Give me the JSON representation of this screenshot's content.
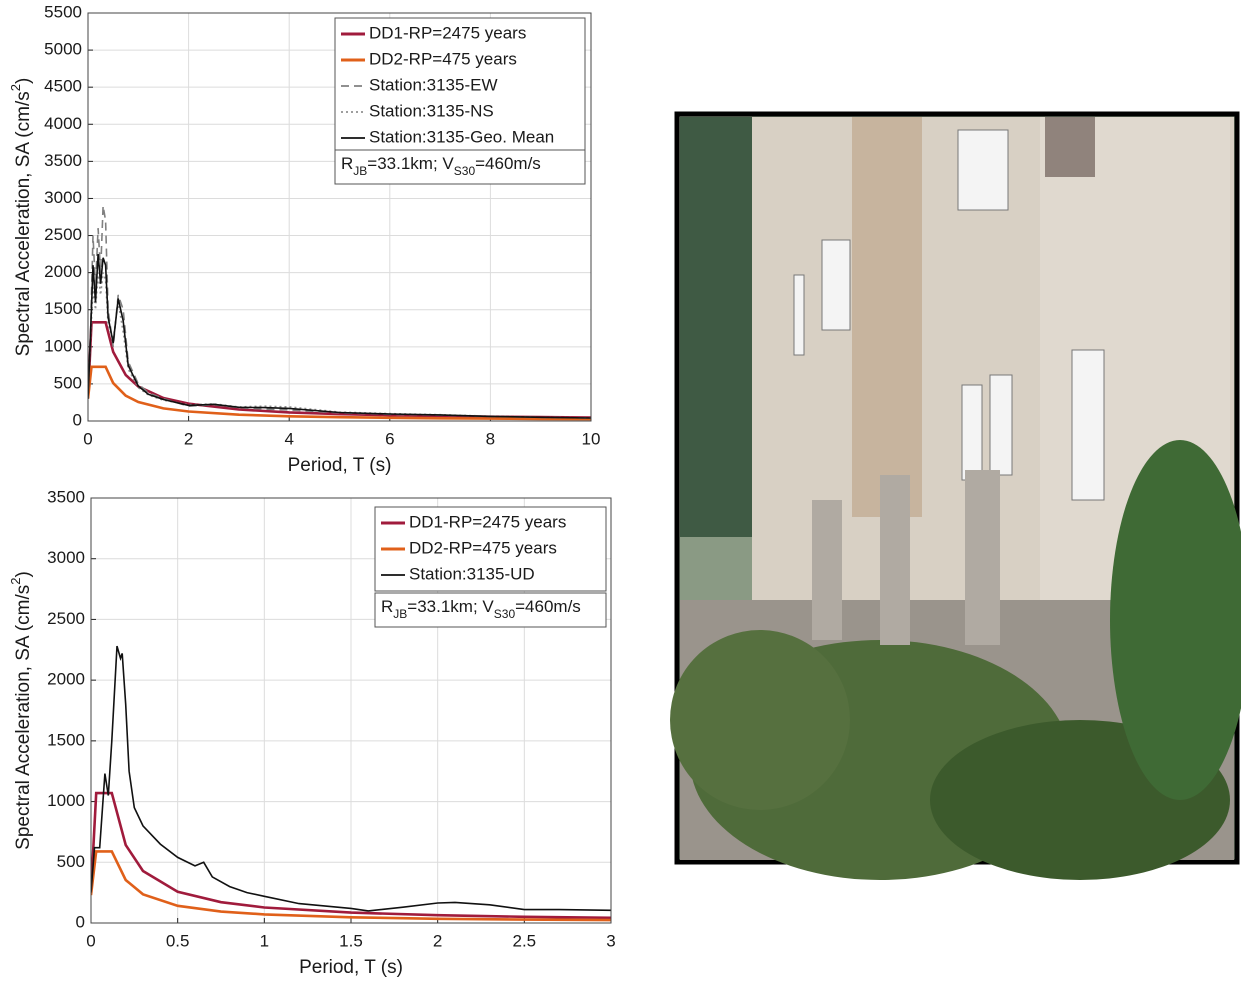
{
  "chart_data": [
    {
      "type": "line",
      "ylabel": [
        "Spectral Acceleration, SA (cm/s",
        "2",
        ")"
      ],
      "xlabel": "Period, T (s)",
      "xlim": [
        0,
        10
      ],
      "xticks": [
        0,
        2,
        4,
        6,
        8,
        10
      ],
      "ylim": [
        0,
        5500
      ],
      "yticks": [
        0,
        500,
        1000,
        1500,
        2000,
        2500,
        3000,
        3500,
        4000,
        4500,
        5000,
        5500
      ],
      "grid": true,
      "legend": "upper right",
      "annotation": [
        "R",
        "JB",
        "=33.1km; V",
        "S30",
        "=460m/s"
      ],
      "series": [
        {
          "name": "DD1-RP=2475 years",
          "color": "#a01b3c",
          "dash": "solid",
          "x": [
            0,
            0.07,
            0.1,
            0.2,
            0.3,
            0.35,
            0.5,
            0.75,
            1,
            1.5,
            2,
            3,
            4,
            5,
            6,
            7,
            8,
            9,
            10
          ],
          "values": [
            310,
            1330,
            1330,
            1330,
            1330,
            1330,
            931,
            620,
            465,
            310,
            233,
            155,
            116,
            93,
            78,
            66,
            58,
            52,
            47
          ]
        },
        {
          "name": "DD2-RP=475 years",
          "color": "#e0601a",
          "dash": "solid",
          "x": [
            0,
            0.07,
            0.1,
            0.2,
            0.3,
            0.35,
            0.5,
            0.75,
            1,
            1.5,
            2,
            3,
            4,
            5,
            6,
            7,
            8,
            9,
            10
          ],
          "values": [
            300,
            730,
            730,
            730,
            730,
            730,
            511,
            341,
            256,
            170,
            128,
            85,
            64,
            51,
            43,
            37,
            32,
            28,
            26
          ]
        },
        {
          "name": "Station:3135-EW",
          "color": "#808080",
          "dash": "dashed",
          "x": [
            0,
            0.05,
            0.1,
            0.15,
            0.2,
            0.25,
            0.3,
            0.35,
            0.4,
            0.5,
            0.6,
            0.7,
            0.8,
            1,
            1.2,
            1.5,
            2,
            2.5,
            3,
            3.5,
            4,
            5,
            6,
            7,
            8,
            9,
            10
          ],
          "values": [
            300,
            1200,
            2500,
            1800,
            2600,
            2000,
            2900,
            2700,
            1500,
            1000,
            1700,
            1500,
            800,
            500,
            380,
            300,
            200,
            220,
            180,
            160,
            150,
            110,
            90,
            80,
            60,
            50,
            40
          ]
        },
        {
          "name": "Station:3135-NS",
          "color": "#909090",
          "dash": "dotted",
          "x": [
            0,
            0.05,
            0.1,
            0.15,
            0.2,
            0.25,
            0.3,
            0.35,
            0.4,
            0.5,
            0.6,
            0.7,
            0.8,
            1,
            1.2,
            1.5,
            2,
            2.5,
            3,
            3.5,
            4,
            5,
            6,
            7,
            8,
            9,
            10
          ],
          "values": [
            300,
            1100,
            1800,
            1500,
            2000,
            1700,
            2000,
            1900,
            1300,
            1100,
            1600,
            1200,
            700,
            450,
            350,
            280,
            220,
            230,
            190,
            200,
            190,
            120,
            100,
            85,
            65,
            50,
            40
          ]
        },
        {
          "name": "Station:3135-Geo. Mean",
          "color": "#111111",
          "dash": "solid",
          "x": [
            0,
            0.05,
            0.1,
            0.15,
            0.2,
            0.25,
            0.3,
            0.35,
            0.4,
            0.5,
            0.6,
            0.7,
            0.8,
            1,
            1.2,
            1.5,
            2,
            2.5,
            3,
            3.5,
            4,
            5,
            6,
            7,
            8,
            9,
            10
          ],
          "values": [
            300,
            1150,
            2100,
            1600,
            2250,
            1850,
            2200,
            2100,
            1400,
            1050,
            1650,
            1350,
            750,
            470,
            360,
            290,
            210,
            225,
            185,
            180,
            170,
            115,
            95,
            82,
            62,
            50,
            40
          ]
        }
      ]
    },
    {
      "type": "line",
      "ylabel": [
        "Spectral Acceleration, SA (cm/s",
        "2",
        ")"
      ],
      "xlabel": "Period, T (s)",
      "xlim": [
        0,
        3
      ],
      "xticks": [
        0,
        0.5,
        1,
        1.5,
        2,
        2.5,
        3
      ],
      "ylim": [
        0,
        3500
      ],
      "yticks": [
        0,
        500,
        1000,
        1500,
        2000,
        2500,
        3000,
        3500
      ],
      "grid": true,
      "legend": "upper right",
      "annotation": [
        "R",
        "JB",
        "=33.1km; V",
        "S30",
        "=460m/s"
      ],
      "series": [
        {
          "name": "DD1-RP=2475 years",
          "color": "#a01b3c",
          "dash": "solid",
          "x": [
            0,
            0.03,
            0.05,
            0.1,
            0.12,
            0.2,
            0.3,
            0.5,
            0.75,
            1,
            1.5,
            2,
            2.5,
            3
          ],
          "values": [
            250,
            1070,
            1070,
            1070,
            1070,
            642,
            428,
            257,
            171,
            128,
            86,
            64,
            51,
            43
          ]
        },
        {
          "name": "DD2-RP=475 years",
          "color": "#e0601a",
          "dash": "solid",
          "x": [
            0,
            0.03,
            0.05,
            0.1,
            0.12,
            0.2,
            0.3,
            0.5,
            0.75,
            1,
            1.5,
            2,
            2.5,
            3
          ],
          "values": [
            230,
            590,
            590,
            590,
            590,
            354,
            236,
            142,
            94,
            71,
            47,
            35,
            28,
            24
          ]
        },
        {
          "name": "Station:3135-UD",
          "color": "#111111",
          "dash": "solid",
          "x": [
            0,
            0.02,
            0.05,
            0.08,
            0.1,
            0.12,
            0.15,
            0.17,
            0.18,
            0.2,
            0.22,
            0.25,
            0.3,
            0.4,
            0.5,
            0.6,
            0.65,
            0.7,
            0.8,
            0.9,
            1,
            1.2,
            1.5,
            1.6,
            1.8,
            2,
            2.1,
            2.3,
            2.5,
            2.7,
            3
          ],
          "values": [
            250,
            620,
            620,
            1230,
            1050,
            1500,
            2280,
            2180,
            2220,
            1800,
            1250,
            950,
            800,
            650,
            540,
            470,
            500,
            380,
            300,
            250,
            220,
            160,
            120,
            100,
            130,
            165,
            170,
            150,
            110,
            110,
            105
          ]
        }
      ]
    }
  ]
}
